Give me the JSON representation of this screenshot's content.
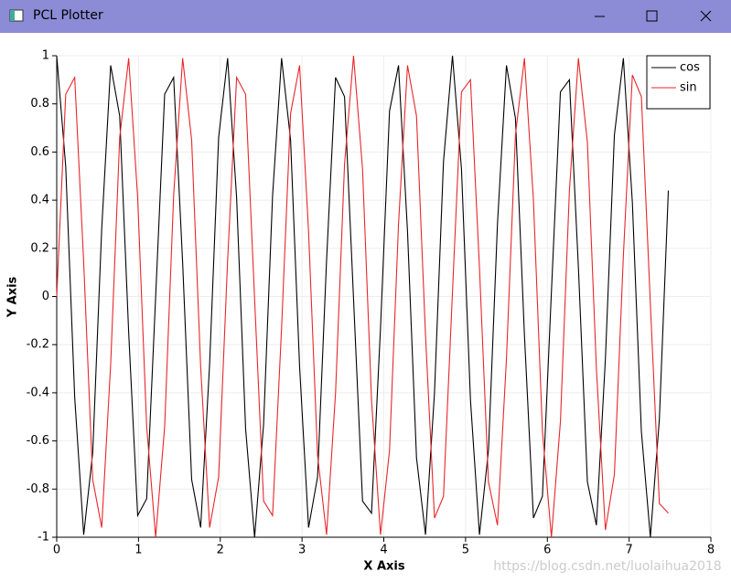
{
  "window_title": "PCL Plotter",
  "watermark": "https://blog.csdn.net/luolaihua2018",
  "chart_data": {
    "type": "line",
    "x_label": "X Axis",
    "y_label": "Y Axis",
    "x": [
      0,
      0.11,
      0.22,
      0.33,
      0.44,
      0.55,
      0.66,
      0.77,
      0.88,
      0.99,
      1.1,
      1.21,
      1.32,
      1.43,
      1.54,
      1.65,
      1.76,
      1.87,
      1.98,
      2.09,
      2.2,
      2.31,
      2.42,
      2.53,
      2.64,
      2.75,
      2.86,
      2.97,
      3.08,
      3.19,
      3.3,
      3.41,
      3.52,
      3.63,
      3.74,
      3.85,
      3.96,
      4.07,
      4.18,
      4.29,
      4.4,
      4.51,
      4.62,
      4.73,
      4.84,
      4.95,
      5.06,
      5.17,
      5.28,
      5.39,
      5.5,
      5.61,
      5.72,
      5.83,
      5.94,
      6.05,
      6.16,
      6.27,
      6.38,
      6.49,
      6.6,
      6.71,
      6.82,
      6.93,
      7.04,
      7.15,
      7.26,
      7.37,
      7.48
    ],
    "series": [
      {
        "name": "cos",
        "color": "#000000",
        "values": [
          1,
          0.54,
          -0.42,
          -0.99,
          -0.65,
          0.28,
          0.96,
          0.75,
          -0.15,
          -0.91,
          -0.84,
          0,
          0.84,
          0.91,
          0.14,
          -0.76,
          -0.96,
          -0.28,
          0.66,
          0.99,
          0.41,
          -0.55,
          -1,
          -0.53,
          0.42,
          0.99,
          0.65,
          -0.29,
          -0.96,
          -0.75,
          0.15,
          0.91,
          0.83,
          -0.01,
          -0.85,
          -0.9,
          -0.13,
          0.77,
          0.96,
          0.27,
          -0.67,
          -0.99,
          -0.4,
          0.56,
          1,
          0.53,
          -0.43,
          -0.99,
          -0.64,
          0.3,
          0.96,
          0.74,
          -0.16,
          -0.92,
          -0.83,
          0.02,
          0.85,
          0.9,
          0.12,
          -0.77,
          -0.95,
          -0.26,
          0.67,
          0.99,
          0.39,
          -0.56,
          -1,
          -0.51,
          0.44
        ]
      },
      {
        "name": "sin",
        "color": "#e8262a",
        "values": [
          0,
          0.84,
          0.91,
          0.14,
          -0.76,
          -0.96,
          -0.28,
          0.66,
          0.99,
          0.41,
          -0.54,
          -1,
          -0.54,
          0.42,
          0.99,
          0.65,
          -0.29,
          -0.96,
          -0.75,
          0.15,
          0.91,
          0.84,
          -0.01,
          -0.85,
          -0.91,
          -0.13,
          0.76,
          0.96,
          0.27,
          -0.66,
          -0.99,
          -0.4,
          0.55,
          1,
          0.53,
          -0.43,
          -0.99,
          -0.64,
          0.3,
          0.96,
          0.75,
          -0.16,
          -0.92,
          -0.83,
          0.02,
          0.85,
          0.9,
          0.12,
          -0.77,
          -0.95,
          -0.26,
          0.67,
          0.99,
          0.4,
          -0.56,
          -1,
          -0.52,
          0.44,
          0.99,
          0.64,
          -0.3,
          -0.97,
          -0.74,
          0.17,
          0.92,
          0.83,
          -0.03,
          -0.86,
          -0.9
        ]
      }
    ],
    "xlim": [
      0,
      8
    ],
    "xticks": [
      0,
      1,
      2,
      3,
      4,
      5,
      6,
      7,
      8
    ],
    "ylim": [
      -1,
      1
    ],
    "yticks": [
      -1,
      -0.8,
      -0.6,
      -0.4,
      -0.2,
      0,
      0.2,
      0.4,
      0.6,
      0.8,
      1
    ],
    "grid": true,
    "legend": "upper-right"
  }
}
